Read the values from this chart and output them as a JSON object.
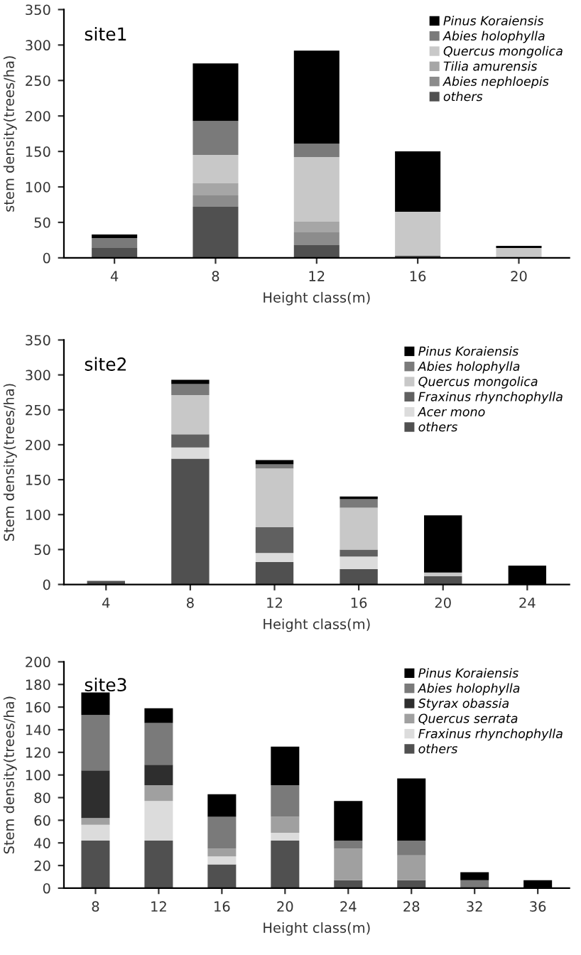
{
  "chart_data": [
    {
      "type": "bar",
      "stacked": true,
      "title": "site1",
      "xlabel": "Height class(m)",
      "ylabel": "stem density(trees/ha)",
      "categories": [
        "4",
        "8",
        "12",
        "16",
        "20"
      ],
      "ylim": [
        0,
        350
      ],
      "yticks": [
        0,
        50,
        100,
        150,
        200,
        250,
        300,
        350
      ],
      "legend": "top right",
      "grid": false,
      "series": [
        {
          "name": "others",
          "color": "#505050",
          "values": [
            14,
            72,
            18,
            3,
            0
          ]
        },
        {
          "name": "Abies nephloepis",
          "color": "#8c8c8c",
          "values": [
            0,
            16,
            18,
            0,
            0
          ]
        },
        {
          "name": "Tilia amurensis",
          "color": "#a6a6a6",
          "values": [
            0,
            17,
            15,
            0,
            0
          ]
        },
        {
          "name": "Quercus mongolica",
          "color": "#c8c8c8",
          "values": [
            0,
            40,
            91,
            62,
            14
          ]
        },
        {
          "name": "Abies holophylla",
          "color": "#7a7a7a",
          "values": [
            14,
            48,
            19,
            0,
            0
          ]
        },
        {
          "name": "Pinus Koraiensis",
          "color": "#000000",
          "values": [
            5,
            81,
            131,
            85,
            3
          ]
        }
      ]
    },
    {
      "type": "bar",
      "stacked": true,
      "title": "site2",
      "xlabel": "Height class(m)",
      "ylabel": "Stem density(trees/ha)",
      "categories": [
        "4",
        "8",
        "12",
        "16",
        "20",
        "24"
      ],
      "ylim": [
        0,
        350
      ],
      "yticks": [
        0,
        50,
        100,
        150,
        200,
        250,
        300,
        350
      ],
      "legend": "top right",
      "grid": false,
      "series": [
        {
          "name": "others",
          "color": "#505050",
          "values": [
            5,
            180,
            32,
            22,
            12,
            0
          ]
        },
        {
          "name": "Acer mono",
          "color": "#dcdcdc",
          "values": [
            0,
            16,
            13,
            18,
            0,
            0
          ]
        },
        {
          "name": "Fraxinus rhynchophylla",
          "color": "#606060",
          "values": [
            0,
            19,
            37,
            10,
            0,
            0
          ]
        },
        {
          "name": "Quercus mongolica",
          "color": "#c8c8c8",
          "values": [
            0,
            56,
            84,
            60,
            5,
            0
          ]
        },
        {
          "name": "Abies holophylla",
          "color": "#7a7a7a",
          "values": [
            0,
            16,
            6,
            12,
            0,
            0
          ]
        },
        {
          "name": "Pinus Koraiensis",
          "color": "#000000",
          "values": [
            0,
            6,
            6,
            4,
            82,
            27
          ]
        }
      ]
    },
    {
      "type": "bar",
      "stacked": true,
      "title": "site3",
      "xlabel": "Height class(m)",
      "ylabel": "Stem density(trees/ha)",
      "categories": [
        "8",
        "12",
        "16",
        "20",
        "24",
        "28",
        "32",
        "36"
      ],
      "ylim": [
        0,
        200
      ],
      "yticks": [
        0,
        20,
        40,
        60,
        80,
        100,
        120,
        140,
        160,
        180,
        200
      ],
      "legend": "top right",
      "grid": false,
      "series": [
        {
          "name": "others",
          "color": "#505050",
          "values": [
            42,
            42,
            21,
            42,
            7,
            7,
            0,
            0
          ]
        },
        {
          "name": "Fraxinus rhynchophylla",
          "color": "#dcdcdc",
          "values": [
            14,
            35,
            7,
            7,
            0,
            0,
            0,
            0
          ]
        },
        {
          "name": "Quercus serrata",
          "color": "#a0a0a0",
          "values": [
            6,
            14,
            7,
            14,
            28,
            22,
            0,
            0
          ]
        },
        {
          "name": "Styrax obassia",
          "color": "#2e2e2e",
          "values": [
            42,
            18,
            0,
            0,
            0,
            0,
            0,
            0
          ]
        },
        {
          "name": "Abies holophylla",
          "color": "#7a7a7a",
          "values": [
            49,
            37,
            28,
            28,
            7,
            13,
            7,
            0
          ]
        },
        {
          "name": "Pinus Koraiensis",
          "color": "#000000",
          "values": [
            20,
            13,
            20,
            34,
            35,
            55,
            7,
            7
          ]
        }
      ]
    }
  ]
}
